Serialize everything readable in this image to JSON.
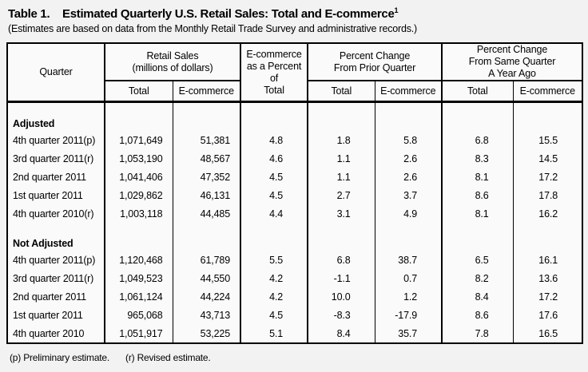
{
  "title": {
    "label": "Table 1.",
    "text": "Estimated Quarterly U.S. Retail Sales: Total and E-commerce",
    "superscript": "1"
  },
  "subtitle": "(Estimates are based on data from the Monthly Retail Trade Survey and administrative records.)",
  "table": {
    "header": {
      "quarter": "Quarter",
      "retail_sales": {
        "line1": "Retail Sales",
        "line2": "(millions of dollars)",
        "sub": [
          "Total",
          "E-commerce"
        ]
      },
      "ecom_pct": {
        "line1": "E-commerce",
        "line2": "as a Percent",
        "line3": "of",
        "line4": "Total"
      },
      "pct_prior": {
        "line1": "Percent Change",
        "line2": "From Prior Quarter",
        "sub": [
          "Total",
          "E-commerce"
        ]
      },
      "pct_year": {
        "line1": "Percent Change",
        "line2": "From Same Quarter",
        "line3": "A Year Ago",
        "sub": [
          "Total",
          "E-commerce"
        ]
      }
    },
    "sections": [
      {
        "label": "Adjusted",
        "rows": [
          {
            "quarter": "4th quarter 2011(p)",
            "values": [
              "1,071,649",
              "51,381",
              "4.8",
              "1.8",
              "5.8",
              "6.8",
              "15.5"
            ]
          },
          {
            "quarter": "3rd quarter 2011(r)",
            "values": [
              "1,053,190",
              "48,567",
              "4.6",
              "1.1",
              "2.6",
              "8.3",
              "14.5"
            ]
          },
          {
            "quarter": "2nd quarter 2011",
            "values": [
              "1,041,406",
              "47,352",
              "4.5",
              "1.1",
              "2.6",
              "8.1",
              "17.2"
            ]
          },
          {
            "quarter": "1st quarter 2011",
            "values": [
              "1,029,862",
              "46,131",
              "4.5",
              "2.7",
              "3.7",
              "8.6",
              "17.8"
            ]
          },
          {
            "quarter": "4th quarter 2010(r)",
            "values": [
              "1,003,118",
              "44,485",
              "4.4",
              "3.1",
              "4.9",
              "8.1",
              "16.2"
            ]
          }
        ]
      },
      {
        "label": "Not Adjusted",
        "rows": [
          {
            "quarter": "4th quarter 2011(p)",
            "values": [
              "1,120,468",
              "61,789",
              "5.5",
              "6.8",
              "38.7",
              "6.5",
              "16.1"
            ]
          },
          {
            "quarter": "3rd quarter 2011(r)",
            "values": [
              "1,049,523",
              "44,550",
              "4.2",
              "-1.1",
              "0.7",
              "8.2",
              "13.6"
            ]
          },
          {
            "quarter": "2nd quarter 2011",
            "values": [
              "1,061,124",
              "44,224",
              "4.2",
              "10.0",
              "1.2",
              "8.4",
              "17.2"
            ]
          },
          {
            "quarter": "1st quarter 2011",
            "values": [
              "965,068",
              "43,713",
              "4.5",
              "-8.3",
              "-17.9",
              "8.6",
              "17.6"
            ]
          },
          {
            "quarter": "4th quarter 2010",
            "values": [
              "1,051,917",
              "53,225",
              "5.1",
              "8.4",
              "35.7",
              "7.8",
              "16.5"
            ]
          }
        ]
      }
    ]
  },
  "footnotes": {
    "preliminary": "(p) Preliminary estimate.",
    "revised": "(r) Revised estimate."
  }
}
